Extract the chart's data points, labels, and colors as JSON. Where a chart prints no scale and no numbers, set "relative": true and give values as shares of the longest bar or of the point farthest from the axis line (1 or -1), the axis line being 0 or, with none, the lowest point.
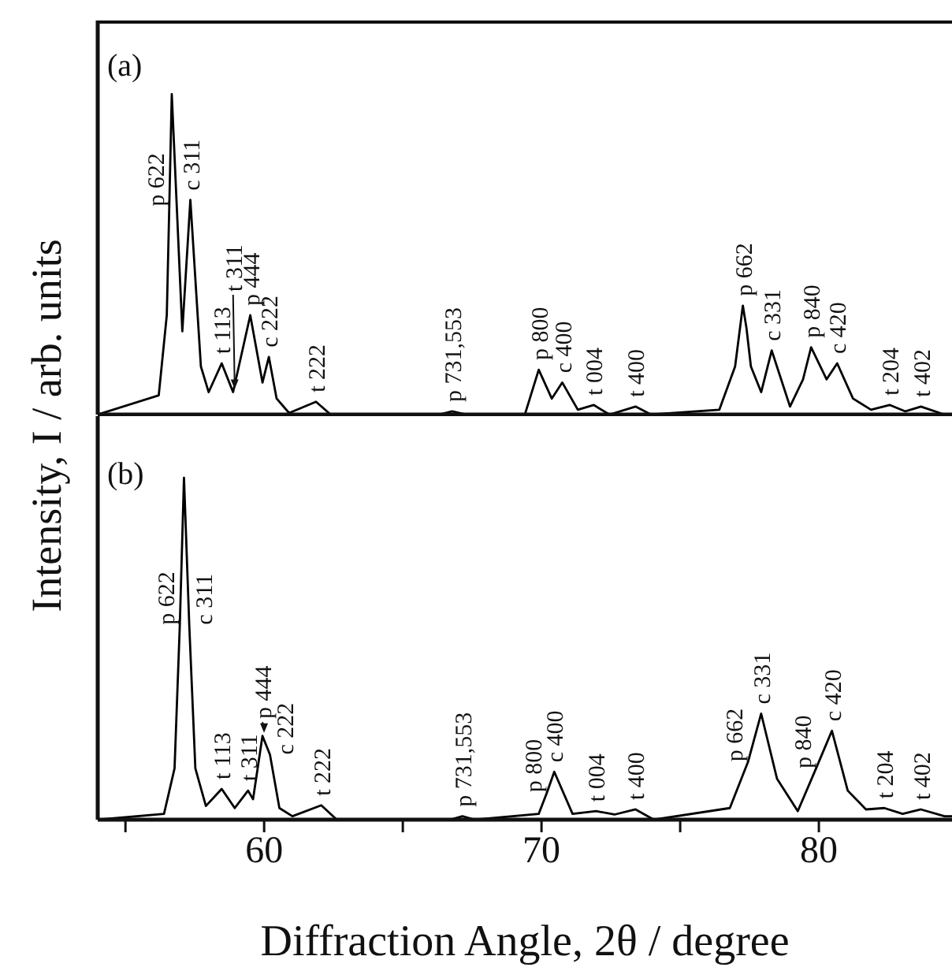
{
  "chart_data": [
    {
      "type": "line",
      "title": "(a)",
      "ylabel": "Intensity, I / arb. units",
      "relative": true,
      "tick_labels": false,
      "marker": "none",
      "line_style": "solid",
      "grid": false,
      "xlim": [
        54,
        84.8
      ],
      "xticks": [
        {
          "value": 55,
          "label": null
        },
        60,
        {
          "value": 65,
          "label": null
        },
        70,
        {
          "value": 75,
          "label": null
        },
        80
      ],
      "series": [
        {
          "color": "#000000",
          "x": [
            54,
            56.2,
            56.49,
            56.58,
            56.67,
            57.05,
            57.34,
            57.72,
            58.0,
            58.47,
            58.88,
            59.5,
            59.94,
            60.17,
            60.45,
            60.9,
            61.87,
            62.4,
            66.3,
            66.78,
            67.3,
            69.4,
            69.9,
            70.37,
            70.75,
            71.31,
            71.88,
            72.45,
            73.39,
            73.95,
            76.41,
            76.98,
            77.26,
            77.39,
            77.55,
            77.92,
            78.3,
            78.96,
            79.43,
            79.72,
            80.28,
            80.66,
            81.23,
            81.88,
            82.55,
            83.12,
            83.68,
            84.53,
            84.8
          ],
          "values": [
            0,
            0.06,
            0.31,
            0.65,
            1.0,
            0.26,
            0.67,
            0.15,
            0.07,
            0.16,
            0.07,
            0.31,
            0.1,
            0.18,
            0.05,
            0.005,
            0.04,
            0,
            0,
            0.01,
            0,
            0,
            0.14,
            0.05,
            0.1,
            0.015,
            0.03,
            0,
            0.025,
            0,
            0.015,
            0.15,
            0.34,
            0.27,
            0.15,
            0.07,
            0.2,
            0.025,
            0.11,
            0.21,
            0.11,
            0.16,
            0.05,
            0.015,
            0.03,
            0.01,
            0.025,
            0,
            0
          ]
        }
      ],
      "annotations": [
        {
          "text": "p 622",
          "x": 56.58,
          "y": 0.65
        },
        {
          "text": "c 311",
          "x": 57.34,
          "y": 0.67
        },
        {
          "text": "t 113",
          "x": 58.47,
          "y": 0.16
        },
        {
          "text": "t 311",
          "x": 58.88,
          "y": 0.07
        },
        {
          "text": "p 444",
          "x": 59.5,
          "y": 0.31
        },
        {
          "text": "c 222",
          "x": 60.17,
          "y": 0.18
        },
        {
          "text": "t 222",
          "x": 61.87,
          "y": 0.04
        },
        {
          "text": "p 731,553",
          "x": 66.78,
          "y": 0.01
        },
        {
          "text": "p 800",
          "x": 69.9,
          "y": 0.14
        },
        {
          "text": "c 400",
          "x": 70.75,
          "y": 0.1
        },
        {
          "text": "t 004",
          "x": 71.88,
          "y": 0.03
        },
        {
          "text": "t 400",
          "x": 73.39,
          "y": 0.025
        },
        {
          "text": "p 662",
          "x": 77.26,
          "y": 0.34
        },
        {
          "text": "c 331",
          "x": 78.3,
          "y": 0.2
        },
        {
          "text": "p 840",
          "x": 79.72,
          "y": 0.21
        },
        {
          "text": "c 420",
          "x": 80.66,
          "y": 0.16
        },
        {
          "text": "t 204",
          "x": 82.55,
          "y": 0.03
        },
        {
          "text": "t 402",
          "x": 83.68,
          "y": 0.025
        }
      ]
    },
    {
      "type": "line",
      "title": "(b)",
      "xlabel": "Diffraction Angle, 2θ / degree",
      "relative": true,
      "tick_labels": "x",
      "marker": "none",
      "line_style": "solid",
      "grid": false,
      "xlim": [
        54,
        84.8
      ],
      "xticks": [
        {
          "value": 55,
          "label": null
        },
        60,
        {
          "value": 65,
          "label": null
        },
        70,
        {
          "value": 75,
          "label": null
        },
        80
      ],
      "series": [
        {
          "color": "#000000",
          "x": [
            54,
            56.39,
            56.77,
            56.96,
            57.11,
            57.3,
            57.52,
            57.9,
            58.47,
            58.94,
            59.42,
            59.6,
            59.94,
            60.21,
            60.55,
            61.02,
            62.06,
            62.62,
            66.7,
            67.15,
            67.6,
            69.9,
            70.2,
            70.46,
            71.12,
            71.97,
            72.63,
            73.39,
            74.05,
            76.79,
            77.45,
            77.92,
            78.49,
            79.24,
            79.9,
            80.47,
            81.04,
            81.7,
            82.36,
            83.02,
            83.68,
            84.53,
            84.8
          ],
          "values": [
            0,
            0.017,
            0.15,
            0.57,
            1.0,
            0.57,
            0.15,
            0.04,
            0.09,
            0.034,
            0.085,
            0.06,
            0.245,
            0.19,
            0.034,
            0.01,
            0.042,
            0,
            0,
            0.01,
            0,
            0.017,
            0.08,
            0.14,
            0.017,
            0.025,
            0.015,
            0.03,
            0,
            0.034,
            0.17,
            0.31,
            0.12,
            0.025,
            0.15,
            0.26,
            0.085,
            0.03,
            0.034,
            0.017,
            0.03,
            0.01,
            0.01
          ]
        }
      ],
      "annotations": [
        {
          "text": "p 622",
          "x": 56.96,
          "y": 0.57
        },
        {
          "text": "c 311",
          "x": 57.3,
          "y": 0.57
        },
        {
          "text": "t 113",
          "x": 58.47,
          "y": 0.09
        },
        {
          "text": "t 311",
          "x": 59.42,
          "y": 0.085
        },
        {
          "text": "p 444",
          "x": 59.94,
          "y": 0.245
        },
        {
          "text": "c 222",
          "x": 60.21,
          "y": 0.19
        },
        {
          "text": "t 222",
          "x": 62.06,
          "y": 0.042
        },
        {
          "text": "p 731,553",
          "x": 67.15,
          "y": 0.01
        },
        {
          "text": "p 800",
          "x": 70.2,
          "y": 0.08
        },
        {
          "text": "c 400",
          "x": 70.46,
          "y": 0.14
        },
        {
          "text": "t 004",
          "x": 71.97,
          "y": 0.025
        },
        {
          "text": "t 400",
          "x": 73.39,
          "y": 0.03
        },
        {
          "text": "p 662",
          "x": 77.45,
          "y": 0.17
        },
        {
          "text": "c 331",
          "x": 77.92,
          "y": 0.31
        },
        {
          "text": "p 840",
          "x": 79.9,
          "y": 0.15
        },
        {
          "text": "c 420",
          "x": 80.47,
          "y": 0.26
        },
        {
          "text": "t 204",
          "x": 82.36,
          "y": 0.034
        },
        {
          "text": "t 402",
          "x": 83.68,
          "y": 0.03
        }
      ]
    }
  ]
}
